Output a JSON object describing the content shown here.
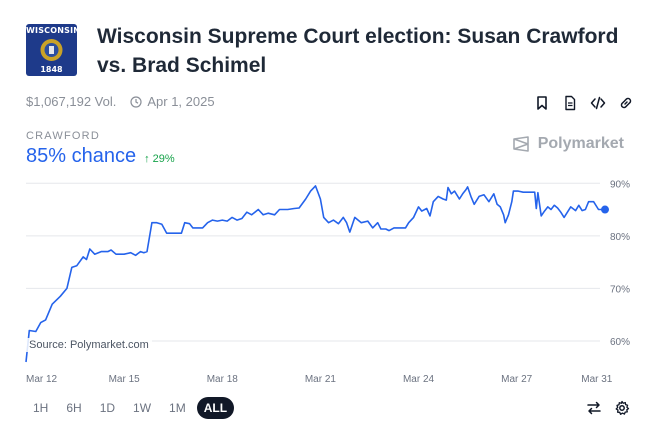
{
  "header": {
    "flag_top": "WISCONSIN",
    "flag_year": "1848",
    "title": "Wisconsin Supreme Court election: Susan Crawford vs. Brad Schimel"
  },
  "meta": {
    "volume": "$1,067,192 Vol.",
    "date": "Apr 1, 2025"
  },
  "actions": [
    "bookmark-icon",
    "document-icon",
    "embed-code-icon",
    "link-icon"
  ],
  "outcome": {
    "name": "CRAWFORD",
    "chance": "85% chance",
    "delta": "↑ 29%"
  },
  "brand": {
    "name": "Polymarket"
  },
  "source": "Source: Polymarket.com",
  "colors": {
    "line": "#2563eb",
    "delta": "#16a34a"
  },
  "chart_data": {
    "type": "line",
    "x_tick_labels": [
      "Mar 12",
      "Mar 15",
      "Mar 18",
      "Mar 21",
      "Mar 24",
      "Mar 27",
      "Mar 31"
    ],
    "y_tick_labels": [
      "90%",
      "80%",
      "70%",
      "60%"
    ],
    "ylim": [
      56,
      91
    ],
    "grid": true,
    "series": [
      {
        "points": [
          [
            0,
            56
          ],
          [
            0.1,
            62
          ],
          [
            0.3,
            61.8
          ],
          [
            0.45,
            63.5
          ],
          [
            0.6,
            64
          ],
          [
            0.8,
            67
          ],
          [
            1.05,
            68.5
          ],
          [
            1.25,
            70
          ],
          [
            1.4,
            74
          ],
          [
            1.55,
            74.3
          ],
          [
            1.75,
            76
          ],
          [
            1.85,
            75.5
          ],
          [
            1.95,
            77.5
          ],
          [
            2.1,
            76.5
          ],
          [
            2.3,
            77
          ],
          [
            2.5,
            77
          ],
          [
            2.6,
            77.3
          ],
          [
            2.75,
            76.5
          ],
          [
            3.0,
            76.5
          ],
          [
            3.2,
            76.8
          ],
          [
            3.35,
            76.3
          ],
          [
            3.5,
            77
          ],
          [
            3.6,
            76.8
          ],
          [
            3.7,
            77
          ],
          [
            3.85,
            82.5
          ],
          [
            4.0,
            82.5
          ],
          [
            4.15,
            82.2
          ],
          [
            4.3,
            80.5
          ],
          [
            4.5,
            80.5
          ],
          [
            4.75,
            80.5
          ],
          [
            4.85,
            82.5
          ],
          [
            5.0,
            82.3
          ],
          [
            5.1,
            81.5
          ],
          [
            5.4,
            81.5
          ],
          [
            5.55,
            82.5
          ],
          [
            5.7,
            83
          ],
          [
            5.85,
            82.8
          ],
          [
            6.0,
            83
          ],
          [
            6.15,
            82.8
          ],
          [
            6.3,
            83.5
          ],
          [
            6.45,
            83
          ],
          [
            6.6,
            83.3
          ],
          [
            6.75,
            84.5
          ],
          [
            6.9,
            84
          ],
          [
            7.1,
            85
          ],
          [
            7.25,
            84
          ],
          [
            7.4,
            84.3
          ],
          [
            7.6,
            84
          ],
          [
            7.75,
            85
          ],
          [
            8.0,
            85
          ],
          [
            8.2,
            85.2
          ],
          [
            8.35,
            85.3
          ],
          [
            8.55,
            87
          ],
          [
            8.7,
            88.5
          ],
          [
            8.85,
            89.5
          ],
          [
            9.0,
            87
          ],
          [
            9.1,
            83.5
          ],
          [
            9.25,
            82.5
          ],
          [
            9.4,
            83
          ],
          [
            9.55,
            82.3
          ],
          [
            9.7,
            83.5
          ],
          [
            9.8,
            82.5
          ],
          [
            9.9,
            80.7
          ],
          [
            10.05,
            83.5
          ],
          [
            10.25,
            82.5
          ],
          [
            10.45,
            82.8
          ],
          [
            10.6,
            81.5
          ],
          [
            10.75,
            82.5
          ],
          [
            10.85,
            81.3
          ],
          [
            11.0,
            81.3
          ],
          [
            11.1,
            81
          ],
          [
            11.25,
            81.5
          ],
          [
            11.5,
            81.5
          ],
          [
            11.6,
            81.5
          ],
          [
            11.7,
            82.5
          ],
          [
            11.85,
            83.5
          ],
          [
            12.0,
            85.5
          ],
          [
            12.1,
            84.7
          ],
          [
            12.25,
            85.2
          ],
          [
            12.35,
            83.8
          ],
          [
            12.45,
            86.5
          ],
          [
            12.6,
            87.5
          ],
          [
            12.75,
            87
          ],
          [
            12.85,
            86.8
          ],
          [
            12.9,
            89.2
          ],
          [
            13.0,
            88
          ],
          [
            13.1,
            88.5
          ],
          [
            13.25,
            87
          ],
          [
            13.35,
            88
          ],
          [
            13.45,
            88.8
          ],
          [
            13.5,
            89.3
          ],
          [
            13.6,
            87.5
          ],
          [
            13.7,
            86
          ],
          [
            13.85,
            87.5
          ],
          [
            14.0,
            87.8
          ],
          [
            14.15,
            86.5
          ],
          [
            14.3,
            88
          ],
          [
            14.4,
            86
          ],
          [
            14.5,
            85.5
          ],
          [
            14.6,
            84
          ],
          [
            14.65,
            82.5
          ],
          [
            14.75,
            84
          ],
          [
            14.85,
            86.5
          ],
          [
            14.9,
            88.5
          ],
          [
            15.05,
            88.5
          ],
          [
            15.2,
            88.3
          ],
          [
            15.4,
            88.3
          ],
          [
            15.55,
            88.3
          ],
          [
            15.6,
            85.2
          ],
          [
            15.65,
            88.2
          ],
          [
            15.75,
            83.8
          ],
          [
            15.85,
            84.7
          ],
          [
            15.95,
            85.5
          ],
          [
            16.05,
            85
          ],
          [
            16.15,
            85.8
          ],
          [
            16.25,
            85.3
          ],
          [
            16.35,
            84.5
          ],
          [
            16.45,
            83.5
          ],
          [
            16.55,
            84.5
          ],
          [
            16.65,
            85.5
          ],
          [
            16.8,
            84.8
          ],
          [
            16.9,
            85.8
          ],
          [
            17.0,
            84.8
          ],
          [
            17.1,
            85
          ],
          [
            17.2,
            86.5
          ],
          [
            17.35,
            86.5
          ],
          [
            17.5,
            85
          ],
          [
            17.6,
            85
          ],
          [
            17.7,
            85
          ]
        ]
      }
    ]
  }
}
